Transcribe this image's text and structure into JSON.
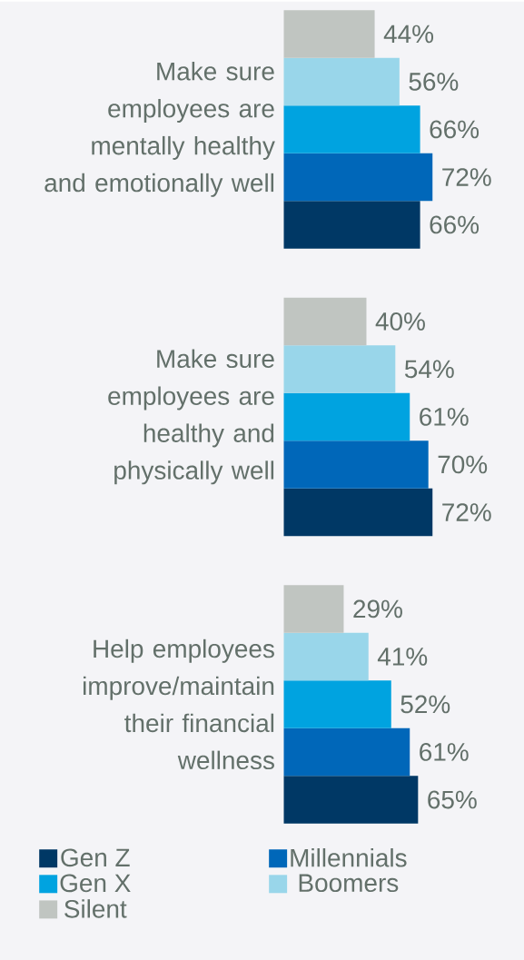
{
  "chart_data": {
    "type": "bar",
    "orientation": "horizontal",
    "legend": "bottom",
    "categories": [
      "Make sure employees are mentally healthy and emotionally well",
      "Make sure employees are healthy and physically well",
      "Help employees improve/maintain their financial wellness"
    ],
    "series": [
      {
        "name": "Gen Z",
        "color": "#003865",
        "values": [
          66,
          72,
          65
        ],
        "value_labels": [
          "66%",
          "72%",
          "65%"
        ]
      },
      {
        "name": "Millennials",
        "color": "#0067b9",
        "values": [
          72,
          70,
          61
        ],
        "value_labels": [
          "72%",
          "70%",
          "61%"
        ]
      },
      {
        "name": "Gen X",
        "color": "#00a3e0",
        "values": [
          66,
          61,
          52
        ],
        "value_labels": [
          "66%",
          "61%",
          "52%"
        ]
      },
      {
        "name": "Boomers",
        "color": "#99d6ea",
        "values": [
          56,
          54,
          41
        ],
        "value_labels": [
          "56%",
          "54%",
          "41%"
        ]
      },
      {
        "name": "Silent",
        "color": "#c0c5c1",
        "values": [
          44,
          40,
          29
        ],
        "value_labels": [
          "44%",
          "40%",
          "29%"
        ]
      }
    ]
  }
}
